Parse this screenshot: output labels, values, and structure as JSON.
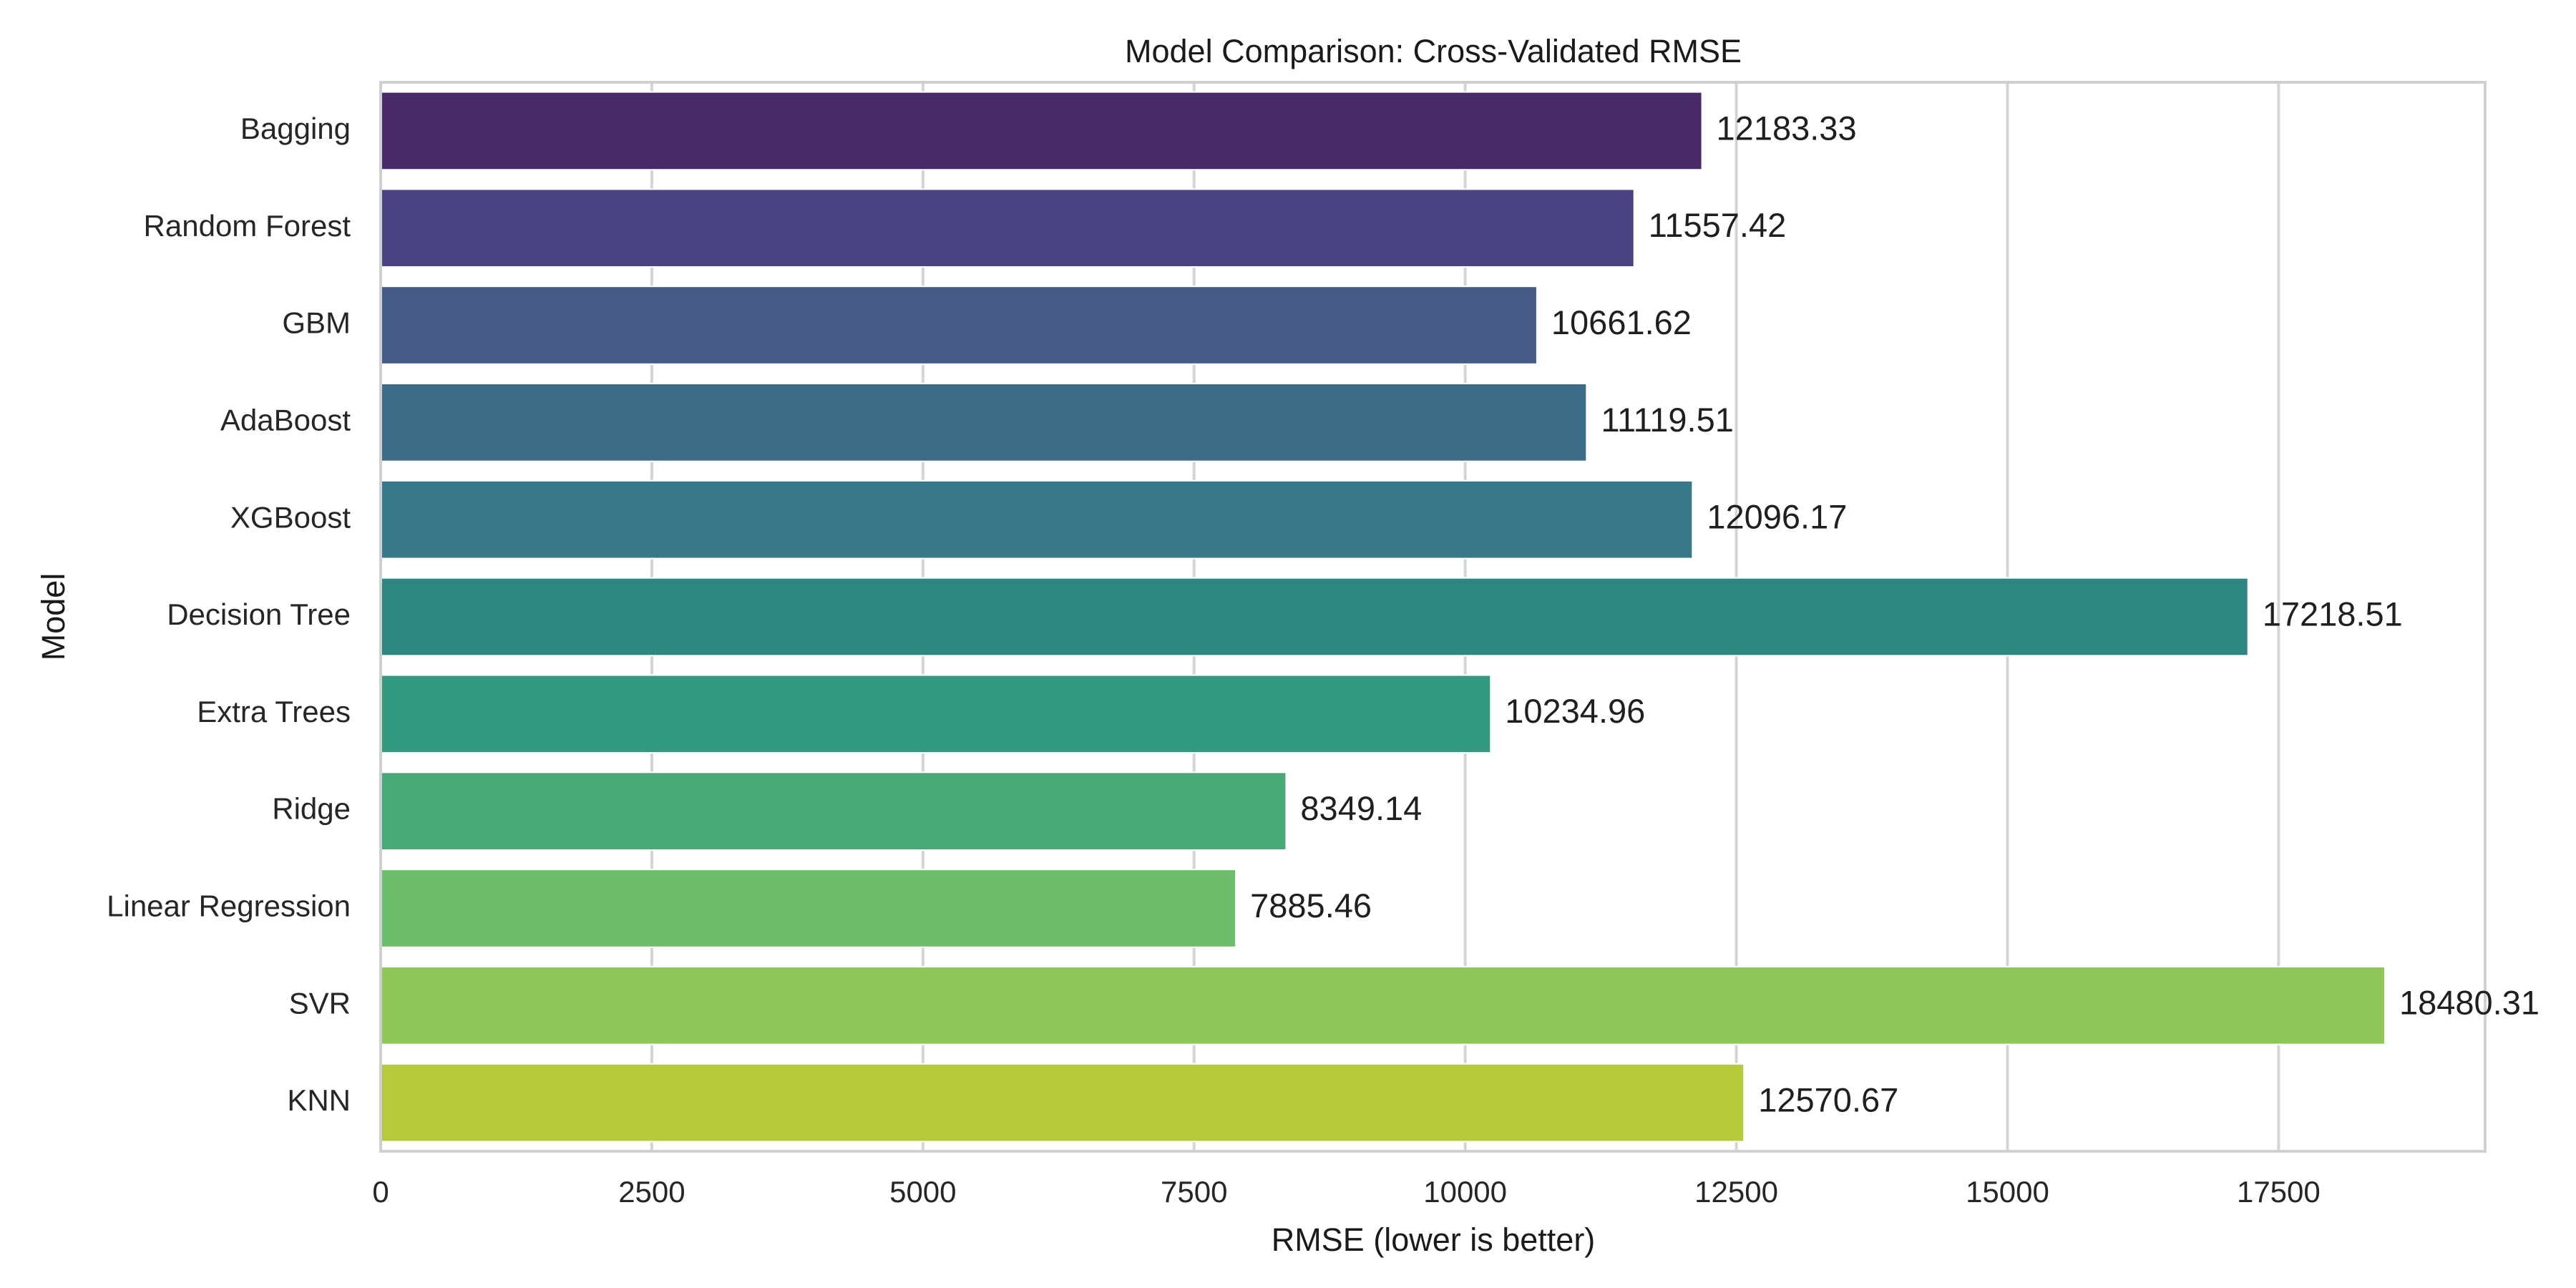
{
  "chart_data": {
    "type": "bar",
    "orientation": "horizontal",
    "title": "Model Comparison: Cross-Validated RMSE",
    "xlabel": "RMSE (lower is better)",
    "ylabel": "Model",
    "categories": [
      "Bagging",
      "Random Forest",
      "GBM",
      "AdaBoost",
      "XGBoost",
      "Decision Tree",
      "Extra Trees",
      "Ridge",
      "Linear Regression",
      "SVR",
      "KNN"
    ],
    "values": [
      12183.33,
      11557.42,
      10661.62,
      11119.51,
      12096.17,
      17218.51,
      10234.96,
      8349.14,
      7885.46,
      18480.31,
      12570.67
    ],
    "value_labels": [
      "12183.33",
      "11557.42",
      "10661.62",
      "11119.51",
      "12096.17",
      "17218.51",
      "10234.96",
      "8349.14",
      "7885.46",
      "18480.31",
      "12570.67"
    ],
    "xlim": [
      0,
      19404.33
    ],
    "xticks": [
      0,
      2500,
      5000,
      7500,
      10000,
      12500,
      15000,
      17500
    ],
    "xtick_labels": [
      "0",
      "2500",
      "5000",
      "7500",
      "10000",
      "12500",
      "15000",
      "17500"
    ],
    "grid": true,
    "grid_axis": "x",
    "legend": "none",
    "colors": [
      "#482a68",
      "#4a4381",
      "#435b85",
      "#3b6d89",
      "#37798a",
      "#2e8680",
      "#33997e",
      "#47aa76",
      "#6dbe6b",
      "#8fc658",
      "#b6c93b"
    ],
    "style": {
      "background": "#ffffff",
      "grid_color": "#d4d4d4",
      "spine_color": "#cfcfcf",
      "bar_edge_color": "#ffffff"
    }
  }
}
